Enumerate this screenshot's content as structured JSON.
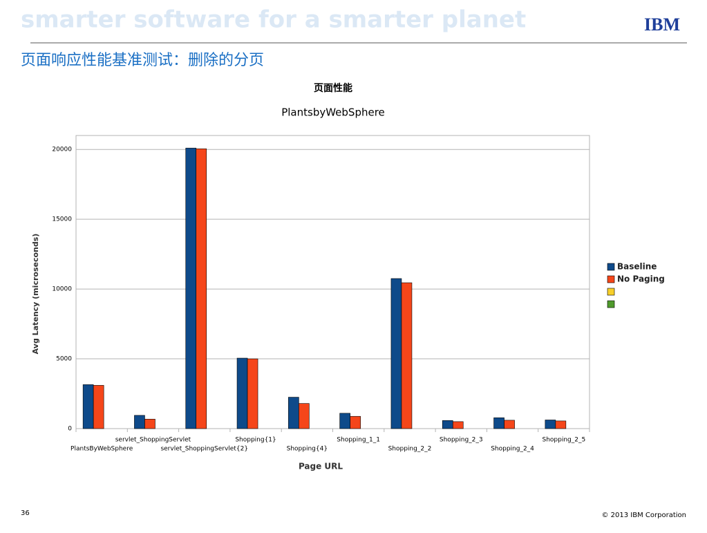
{
  "header": {
    "watermark": "smarter software for a smarter planet",
    "logo": "IBM",
    "title": "页面响应性能基准测试：删除的分页"
  },
  "chart_data": {
    "type": "bar",
    "title": "页面性能",
    "subtitle": "PlantsbyWebSphere",
    "x_label": "Page URL",
    "y_label": "Avg Latency (microseconds)",
    "categories": [
      "PlantsByWebSphere",
      "servlet_ShoppingServlet",
      "servlet_ShoppingServlet{2}",
      "Shopping{1}",
      "Shopping{4}",
      "Shopping_1_1",
      "Shopping_2_2",
      "Shopping_2_3",
      "Shopping_2_4",
      "Shopping_2_5"
    ],
    "series": [
      {
        "name": "Baseline",
        "color": "#0e4a8a",
        "values": [
          3150,
          950,
          20100,
          5050,
          2250,
          1100,
          10750,
          580,
          780,
          620
        ]
      },
      {
        "name": "No Paging",
        "color": "#f5461a",
        "values": [
          3100,
          680,
          20050,
          5000,
          1800,
          880,
          10450,
          500,
          600,
          550
        ]
      }
    ],
    "extra_legend_colors": [
      "#f7cf2a",
      "#4f9a2c"
    ],
    "ylim": [
      0,
      21000
    ],
    "yticks": [
      0,
      5000,
      10000,
      15000,
      20000
    ],
    "grid": true,
    "legend": "right"
  },
  "footer": {
    "page_number": "36",
    "copyright": "© 2013 IBM Corporation"
  }
}
